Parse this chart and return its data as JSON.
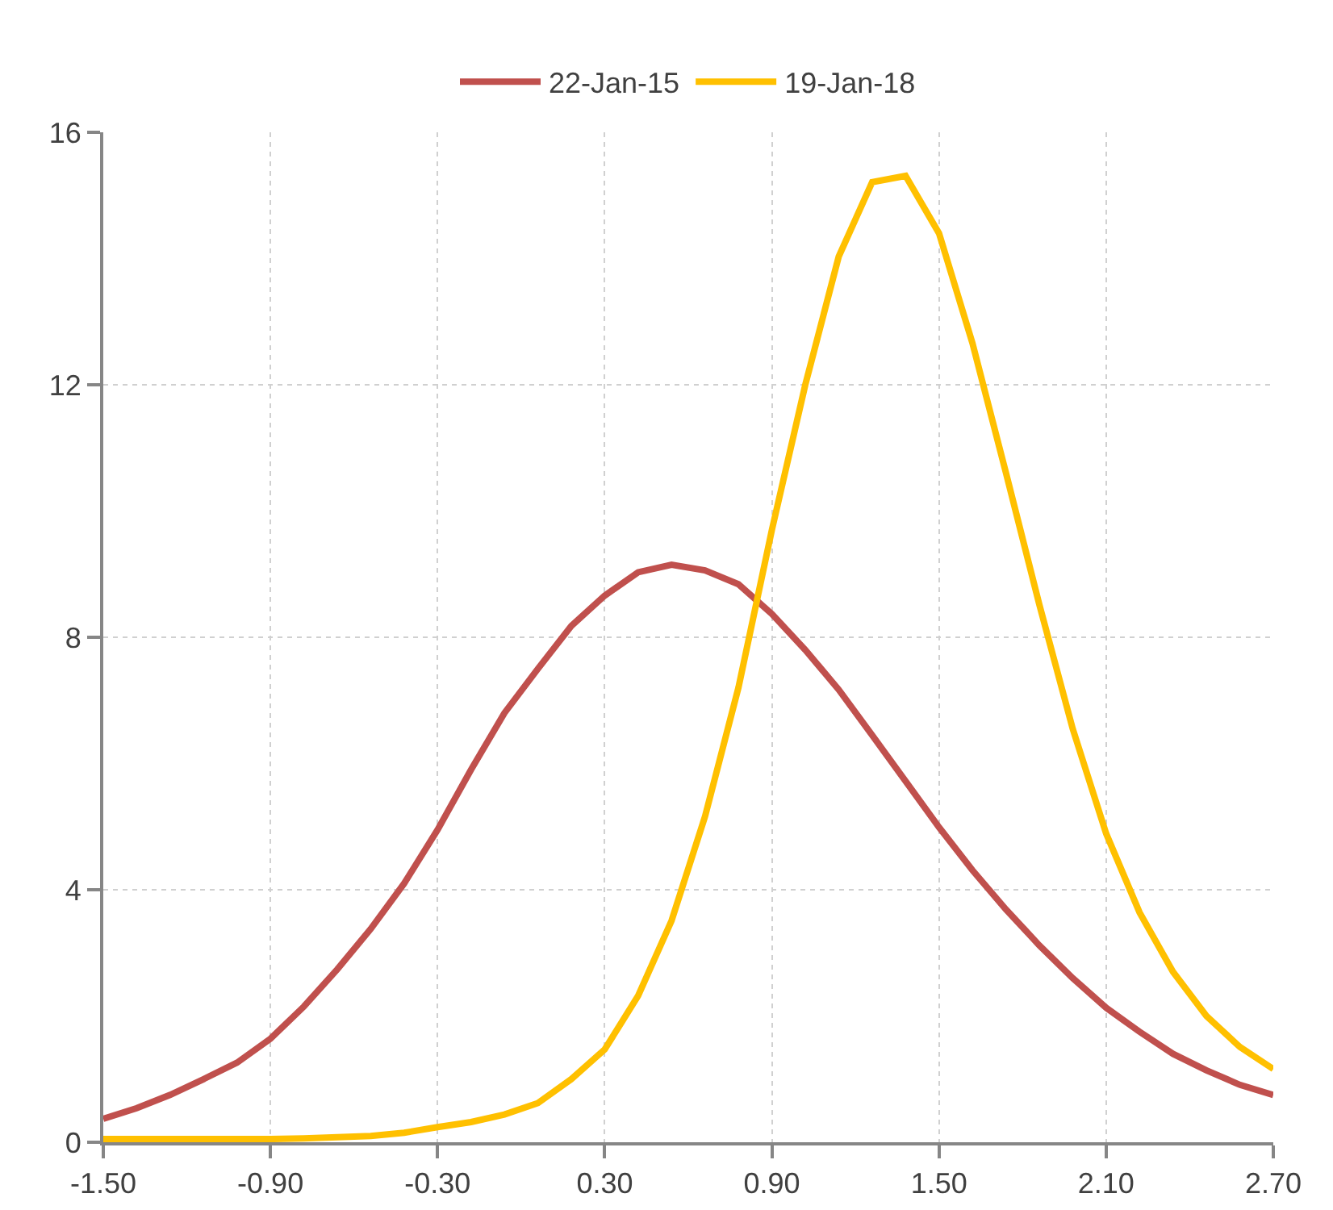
{
  "chart_data": {
    "type": "line",
    "x": [
      -1.5,
      -1.38,
      -1.26,
      -1.14,
      -1.02,
      -0.9,
      -0.78,
      -0.66,
      -0.54,
      -0.42,
      -0.3,
      -0.18,
      -0.06,
      0.06,
      0.18,
      0.3,
      0.42,
      0.54,
      0.66,
      0.78,
      0.9,
      1.02,
      1.14,
      1.26,
      1.38,
      1.5,
      1.62,
      1.74,
      1.86,
      1.98,
      2.1,
      2.22,
      2.34,
      2.46,
      2.58,
      2.7
    ],
    "series": [
      {
        "name": "22-Jan-15",
        "color": "#c0504d",
        "values": [
          0.37,
          0.54,
          0.75,
          1.0,
          1.26,
          1.64,
          2.15,
          2.74,
          3.38,
          4.1,
          4.95,
          5.9,
          6.8,
          7.5,
          8.18,
          8.66,
          9.03,
          9.15,
          9.06,
          8.84,
          8.37,
          7.8,
          7.17,
          6.45,
          5.72,
          4.99,
          4.31,
          3.69,
          3.12,
          2.6,
          2.13,
          1.75,
          1.4,
          1.14,
          0.91,
          0.75
        ]
      },
      {
        "name": "19-Jan-18",
        "color": "#ffc000",
        "values": [
          0.05,
          0.05,
          0.05,
          0.05,
          0.05,
          0.05,
          0.06,
          0.08,
          0.1,
          0.15,
          0.24,
          0.32,
          0.44,
          0.62,
          1.0,
          1.47,
          2.32,
          3.51,
          5.16,
          7.2,
          9.7,
          12.0,
          14.03,
          15.21,
          15.31,
          14.4,
          12.66,
          10.61,
          8.52,
          6.55,
          4.89,
          3.64,
          2.7,
          2.0,
          1.51,
          1.16
        ]
      }
    ],
    "xlim": [
      -1.5,
      2.7
    ],
    "xticks": [
      {
        "value": -1.5,
        "label": "-1.50"
      },
      {
        "value": -0.9,
        "label": "-0.90"
      },
      {
        "value": -0.3,
        "label": "-0.30"
      },
      {
        "value": 0.3,
        "label": "0.30"
      },
      {
        "value": 0.9,
        "label": "0.90"
      },
      {
        "value": 1.5,
        "label": "1.50"
      },
      {
        "value": 2.1,
        "label": "2.10"
      },
      {
        "value": 2.7,
        "label": "2.70"
      }
    ],
    "ylim": [
      0,
      16
    ],
    "yticks": [
      0,
      4,
      8,
      12,
      16
    ],
    "grid": true,
    "legend": "top",
    "marker": "none",
    "line_style": "solid"
  }
}
